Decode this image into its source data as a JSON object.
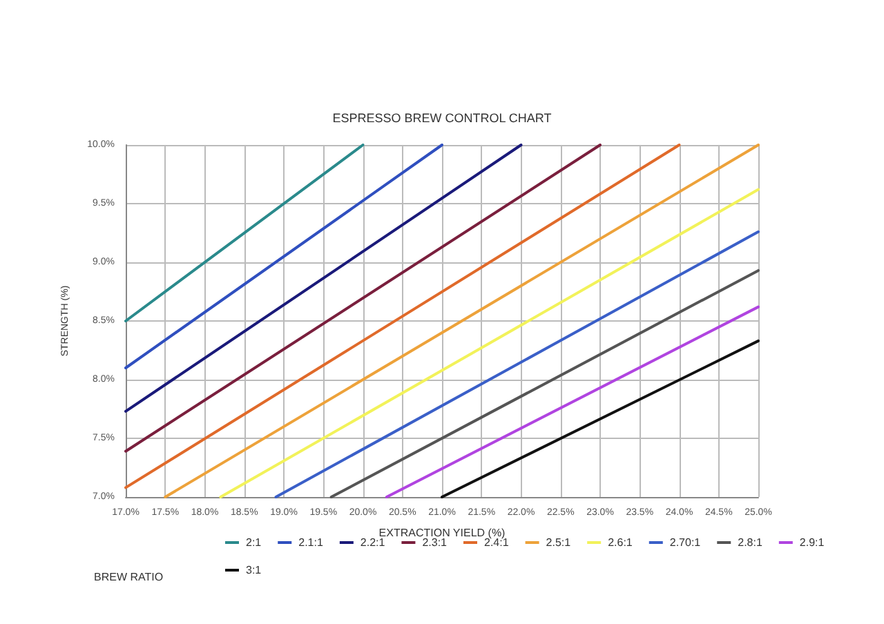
{
  "chart_data": {
    "type": "line",
    "title": "ESPRESSO BREW CONTROL CHART",
    "xlabel": "EXTRACTION YIELD (%)",
    "ylabel": "STRENGTH (%)",
    "legend_title": "BREW RATIO",
    "legend": "bottom",
    "grid": true,
    "marker": "none",
    "line_style": "solid",
    "xlim": [
      17,
      25
    ],
    "ylim": [
      7,
      10
    ],
    "xticks": [
      {
        "value": 17,
        "label": "17.0%"
      },
      {
        "value": 17.5,
        "label": "17.5%"
      },
      {
        "value": 18,
        "label": "18.0%"
      },
      {
        "value": 18.5,
        "label": "18.5%"
      },
      {
        "value": 19,
        "label": "19.0%"
      },
      {
        "value": 19.5,
        "label": "19.5%"
      },
      {
        "value": 20,
        "label": "20.0%"
      },
      {
        "value": 20.5,
        "label": "20.5%"
      },
      {
        "value": 21,
        "label": "21.0%"
      },
      {
        "value": 21.5,
        "label": "21.5%"
      },
      {
        "value": 22,
        "label": "22.0%"
      },
      {
        "value": 22.5,
        "label": "22.5%"
      },
      {
        "value": 23,
        "label": "23.0%"
      },
      {
        "value": 23.5,
        "label": "23.5%"
      },
      {
        "value": 24,
        "label": "24.0%"
      },
      {
        "value": 24.5,
        "label": "24.5%"
      },
      {
        "value": 25,
        "label": "25.0%"
      }
    ],
    "yticks": [
      {
        "value": 7,
        "label": "7.0%"
      },
      {
        "value": 7.5,
        "label": "7.5%"
      },
      {
        "value": 8,
        "label": "8.0%"
      },
      {
        "value": 8.5,
        "label": "8.5%"
      },
      {
        "value": 9,
        "label": "9.0%"
      },
      {
        "value": 9.5,
        "label": "9.5%"
      },
      {
        "value": 10,
        "label": "10.0%"
      }
    ],
    "series": [
      {
        "name": "2:1",
        "color": "#2a8a8c",
        "x": [
          17,
          20
        ],
        "values": [
          8.5,
          10
        ]
      },
      {
        "name": "2.1:1",
        "color": "#2f4fbf",
        "x": [
          17,
          21
        ],
        "values": [
          8.1,
          10
        ]
      },
      {
        "name": "2.2:1",
        "color": "#1a1a7a",
        "x": [
          17,
          22
        ],
        "values": [
          7.73,
          10
        ]
      },
      {
        "name": "2.3:1",
        "color": "#7a1f3d",
        "x": [
          17,
          23
        ],
        "values": [
          7.39,
          10
        ]
      },
      {
        "name": "2.4:1",
        "color": "#e06a2a",
        "x": [
          17,
          24
        ],
        "values": [
          7.08,
          10
        ]
      },
      {
        "name": "2.5:1",
        "color": "#eda23a",
        "x": [
          17.5,
          25
        ],
        "values": [
          7,
          10
        ]
      },
      {
        "name": "2.6:1",
        "color": "#f2f25a",
        "x": [
          18.2,
          25
        ],
        "values": [
          7,
          9.62
        ]
      },
      {
        "name": "2.70:1",
        "color": "#3a5fc8",
        "x": [
          18.9,
          25
        ],
        "values": [
          7,
          9.26
        ]
      },
      {
        "name": "2.8:1",
        "color": "#555555",
        "x": [
          19.6,
          25
        ],
        "values": [
          7,
          8.93
        ]
      },
      {
        "name": "2.9:1",
        "color": "#b044e0",
        "x": [
          20.3,
          25
        ],
        "values": [
          7,
          8.62
        ]
      },
      {
        "name": "3:1",
        "color": "#111111",
        "x": [
          21,
          25
        ],
        "values": [
          7,
          8.33
        ]
      }
    ]
  }
}
